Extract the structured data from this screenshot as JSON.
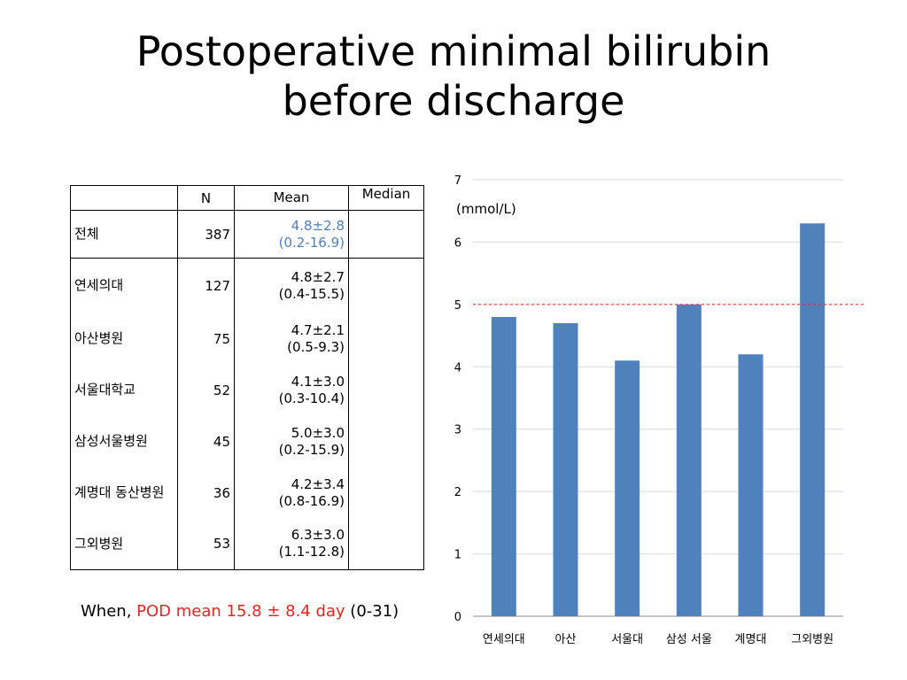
{
  "title": {
    "line1": "Postoperative minimal bilirubin",
    "line2": "before discharge"
  },
  "table": {
    "headers": {
      "n": "N",
      "mean": "Mean",
      "median": "Median"
    },
    "total": {
      "label": "전체",
      "n": "387",
      "mean": "4.8±2.8",
      "range": "(0.2-16.9)"
    },
    "rows": [
      {
        "label": "연세의대",
        "n": "127",
        "mean": "4.8±2.7",
        "range": "(0.4-15.5)"
      },
      {
        "label": "아산병원",
        "n": "75",
        "mean": "4.7±2.1",
        "range": "(0.5-9.3)"
      },
      {
        "label": "서울대학교",
        "n": "52",
        "mean": "4.1±3.0",
        "range": "(0.3-10.4)"
      },
      {
        "label": "삼성서울병원",
        "n": "45",
        "mean": "5.0±3.0",
        "range": "(0.2-15.9)"
      },
      {
        "label": "계명대 동산병원",
        "n": "36",
        "mean": "4.2±3.4",
        "range": "(0.8-16.9)"
      },
      {
        "label": "그외병원",
        "n": "53",
        "mean": "6.3±3.0",
        "range": "(1.1-12.8)"
      }
    ]
  },
  "note": {
    "prefix": "When, ",
    "highlight": "POD mean 15.8 ± 8.4 day",
    "suffix": " (0-31)"
  },
  "colors": {
    "bar": "#4f81bd",
    "reference_line": "#e8251f",
    "highlight_text": "#e8251f"
  },
  "chart_data": {
    "type": "bar",
    "categories": [
      "연세의대",
      "아산",
      "서울대",
      "삼성 서울",
      "계명대",
      "그외병원"
    ],
    "values": [
      4.8,
      4.7,
      4.1,
      5.0,
      4.2,
      6.3
    ],
    "ylabel": "(mmol/L)",
    "ylim": [
      0,
      7
    ],
    "yticks": [
      0,
      1,
      2,
      3,
      4,
      5,
      6,
      7
    ],
    "grid": true,
    "reference_line": 5,
    "legend": "none"
  }
}
